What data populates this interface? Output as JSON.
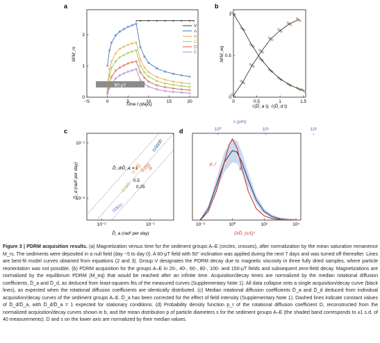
{
  "colors": {
    "V": "#231f20",
    "A": "#2f6bb3",
    "B": "#e8a33a",
    "C": "#8fbf3f",
    "D": "#d2542b",
    "E": "#9a7bd0",
    "band": "#c9d5ea",
    "pr_curve": "#c0392b",
    "p_curve": "#1f3f7a",
    "top_axis": "#3a63c6"
  },
  "panel_a": {
    "letter": "a",
    "ylabel": "M/M_rs",
    "xlabel": "Time t (days)",
    "x_ticks": [
      "−5",
      "0",
      "5",
      "10",
      "15",
      "20"
    ],
    "y_ticks": [
      "0",
      "1",
      "2"
    ],
    "field_label": "60 µT",
    "legend": [
      "V",
      "A",
      "B",
      "C",
      "D",
      "E"
    ],
    "chart_data": {
      "type": "line",
      "xlim": [
        -5,
        22
      ],
      "ylim": [
        0,
        2.8
      ],
      "field_on": [
        0,
        7
      ],
      "series": [
        {
          "name": "V",
          "t": [
            7,
            8,
            10,
            12,
            14,
            16,
            18,
            20,
            21
          ],
          "y": [
            2.45,
            2.45,
            2.45,
            2.45,
            2.45,
            2.45,
            2.45,
            2.45,
            2.45
          ]
        },
        {
          "name": "A",
          "t": [
            0,
            0.5,
            1,
            2,
            3,
            4,
            5,
            6,
            7,
            8,
            9,
            10,
            12,
            14,
            16,
            18,
            20
          ],
          "y": [
            1.0,
            1.5,
            1.75,
            1.98,
            2.1,
            2.18,
            2.25,
            2.3,
            2.35,
            1.6,
            1.3,
            1.1,
            0.92,
            0.82,
            0.75,
            0.7,
            0.66
          ]
        },
        {
          "name": "B",
          "t": [
            0,
            0.5,
            1,
            2,
            3,
            4,
            5,
            6,
            7,
            8,
            9,
            10,
            12,
            14,
            16,
            18,
            20
          ],
          "y": [
            0.35,
            0.9,
            1.15,
            1.4,
            1.55,
            1.62,
            1.68,
            1.72,
            1.75,
            1.2,
            0.95,
            0.8,
            0.65,
            0.56,
            0.5,
            0.46,
            0.43
          ]
        },
        {
          "name": "C",
          "t": [
            0,
            0.5,
            1,
            2,
            3,
            4,
            5,
            6,
            7,
            8,
            9,
            10,
            12,
            14,
            16,
            18,
            20
          ],
          "y": [
            0.25,
            0.7,
            0.95,
            1.15,
            1.28,
            1.35,
            1.42,
            1.46,
            1.5,
            1.0,
            0.8,
            0.66,
            0.52,
            0.44,
            0.4,
            0.36,
            0.33
          ]
        },
        {
          "name": "D",
          "t": [
            0,
            0.5,
            1,
            2,
            3,
            4,
            5,
            6,
            7,
            8,
            9,
            10,
            12,
            14,
            16,
            18,
            20
          ],
          "y": [
            0.15,
            0.45,
            0.65,
            0.85,
            0.95,
            1.02,
            1.08,
            1.12,
            1.15,
            0.8,
            0.62,
            0.5,
            0.38,
            0.32,
            0.28,
            0.25,
            0.23
          ]
        },
        {
          "name": "E",
          "t": [
            0,
            0.5,
            1,
            2,
            3,
            4,
            5,
            6,
            7,
            8,
            9,
            10,
            12,
            14,
            16,
            18,
            20
          ],
          "y": [
            0.1,
            0.3,
            0.45,
            0.6,
            0.7,
            0.76,
            0.82,
            0.86,
            0.9,
            0.55,
            0.42,
            0.34,
            0.25,
            0.2,
            0.17,
            0.15,
            0.13
          ]
        }
      ]
    }
  },
  "panel_b": {
    "letter": "b",
    "ylabel": "M/M_eq",
    "xlabel": "√(D̄_a t), √(D̄_d t)",
    "x_ticks": [
      "0",
      "0.5",
      "1",
      "1.5"
    ],
    "y_ticks": [
      "0",
      "0.5",
      "1"
    ],
    "chart_data": {
      "type": "line",
      "xlim": [
        0,
        1.55
      ],
      "ylim": [
        0,
        1.05
      ],
      "acquisition_x": [
        0,
        0.2,
        0.4,
        0.6,
        0.8,
        1.0,
        1.2,
        1.4
      ],
      "acquisition_y": [
        0.02,
        0.18,
        0.38,
        0.55,
        0.7,
        0.8,
        0.88,
        0.93
      ],
      "decay_x": [
        0,
        0.2,
        0.4,
        0.6,
        0.8,
        1.0,
        1.2,
        1.4,
        1.5
      ],
      "decay_y": [
        1.0,
        0.82,
        0.62,
        0.45,
        0.32,
        0.22,
        0.15,
        0.1,
        0.08
      ]
    }
  },
  "panel_c": {
    "letter": "c",
    "ylabel": "D̄_d (rad² per day)",
    "xlabel": "D̄_a (rad² per day)",
    "x_ticks": [
      "10⁻²",
      "10⁻¹"
    ],
    "y_ticks": [
      "10⁻²",
      "10⁻¹"
    ],
    "ratio_label": "D̄_d/D̄_a = 1",
    "ratio_lines": [
      "1",
      "0.5",
      "0.25"
    ],
    "chart_data": {
      "type": "scatter",
      "xlim": [
        0.005,
        0.3
      ],
      "ylim": [
        0.004,
        0.15
      ],
      "groups": [
        {
          "name": "A",
          "x": [
            0.12,
            0.13,
            0.14,
            0.15,
            0.16
          ],
          "y": [
            0.075,
            0.085,
            0.09,
            0.1,
            0.11
          ]
        },
        {
          "name": "B",
          "x": [
            0.045,
            0.05,
            0.055,
            0.06
          ],
          "y": [
            0.03,
            0.035,
            0.04,
            0.038
          ]
        },
        {
          "name": "C",
          "x": [
            0.028,
            0.032,
            0.035
          ],
          "y": [
            0.014,
            0.016,
            0.018
          ]
        },
        {
          "name": "D",
          "x": [
            0.07,
            0.08,
            0.09,
            0.1
          ],
          "y": [
            0.032,
            0.036,
            0.04,
            0.035
          ]
        },
        {
          "name": "E",
          "x": [
            0.018,
            0.02,
            0.022,
            0.025
          ],
          "y": [
            0.006,
            0.0065,
            0.007,
            0.0075
          ]
        }
      ]
    }
  },
  "panel_d": {
    "letter": "d",
    "top_label": "s (µm)",
    "top_ticks": [
      "10⁰",
      "10¹",
      "10²"
    ],
    "bottom_label": "D/D̄, (s/s̄)³",
    "x_ticks": [
      "10⁻²",
      "10⁰",
      "10²",
      "10⁴"
    ],
    "label_pr": "p_r",
    "label_p": "p",
    "chart_data": {
      "type": "line",
      "log_x": true,
      "pr_x": [
        -2,
        -1.5,
        -1,
        -0.5,
        -0.2,
        0,
        0.3,
        0.6,
        1,
        1.5,
        2,
        2.5,
        3,
        3.5,
        4
      ],
      "pr_y": [
        0.0,
        0.03,
        0.1,
        0.2,
        0.26,
        0.28,
        0.25,
        0.18,
        0.1,
        0.04,
        0.015,
        0.005,
        0.002,
        0.001,
        0.0
      ],
      "p_x": [
        -2,
        -1.5,
        -1,
        -0.5,
        0,
        0.3,
        0.6,
        1,
        1.5,
        2,
        2.5,
        3,
        3.5,
        4
      ],
      "p_y": [
        0.0,
        0.04,
        0.12,
        0.2,
        0.24,
        0.235,
        0.2,
        0.14,
        0.07,
        0.03,
        0.012,
        0.004,
        0.001,
        0.0
      ]
    }
  },
  "caption": {
    "figure_label": "Figure 3 | PDRM acquisition results.",
    "text": " (a) Magnetization versus time for the sediment groups A–E (circles, crosses), after normalization by the mean saturation remanence M_rs. The sediments were deposited in a null field (day −5 to day 0). A 60-µT field with 50° inclination was applied during the next 7 days and was turned off thereafter. Lines are best-fit model curves obtained from equations (2 and 3). Group V designates the PDRM decay due to magnetic viscosity in three fully dried samples, where particle reorientation was not possible. (b) PDRM acquisition for the groups A–E in 20-, 40-, 60-, 80-, 100- and 150-µT fields and subsequent zero-field decay. Magnetizations are normalized by the equilibrium PDRM (M_eq) that would be reached after an infinite time. Acquisition/decay times are normalized by the median rotational diffusion coefficients, D̄_a and D̄_d, as deduced from least-squares fits of the measured curves (Supplementary Note 1). All data collapse onto a single acquisition/decay curve (black lines), as expected when the rotational diffusion coefficients are identically distributed. (c) Median rotational diffusion coefficients D̄_a and D̄_d deduced from individual acquisition/decay curves of the sediment groups A–E. D̄_a has been corrected for the effect of field intensity (Supplementary Note 1). Dashed lines indicate constant values of D̄_d/D̄_a, with D̄_d/D̄_a = 1 expected for stationary conditions. (d) Probability density function p_r of the rotational diffusion coefficient D, reconstructed from the normalized acquisition/decay curves shown in b, and the mean distribution p of particle diameters s for the sediment groups A–E (the shaded band corresponds to ±1 s.d. of 40 measurements). D and s on the lower axis are normalized by their median values."
  }
}
